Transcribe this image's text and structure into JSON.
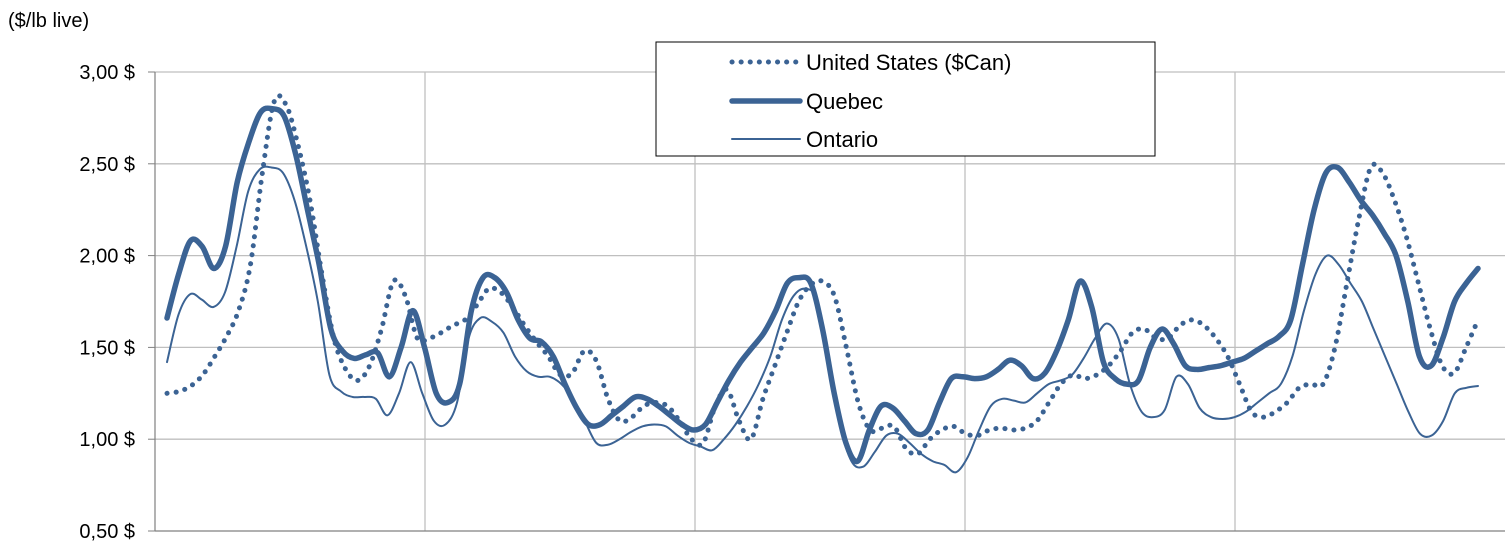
{
  "chart_data": {
    "type": "line",
    "ylabel": "($/lb live)",
    "ylim": [
      0.5,
      3.0
    ],
    "yticks": [
      3.0,
      2.5,
      2.0,
      1.5,
      1.0,
      0.5
    ],
    "ytick_labels": [
      "3,00  $",
      "2,50  $",
      "2,00  $",
      "1,50  $",
      "1,00  $",
      "0,50  $"
    ],
    "x_period_count": 5,
    "grid": "on",
    "legend_position": "top-center",
    "colors": {
      "line": "#3b6394",
      "grid": "#bfbfbf",
      "axis": "#808080"
    },
    "series": [
      {
        "name": "United States ($Can)",
        "style": "dotted",
        "values": [
          1.25,
          1.26,
          1.29,
          1.35,
          1.45,
          1.56,
          1.7,
          1.95,
          2.45,
          2.84,
          2.82,
          2.6,
          2.3,
          1.9,
          1.55,
          1.38,
          1.32,
          1.4,
          1.6,
          1.86,
          1.78,
          1.55,
          1.55,
          1.58,
          1.62,
          1.65,
          1.73,
          1.82,
          1.8,
          1.72,
          1.62,
          1.53,
          1.45,
          1.35,
          1.36,
          1.48,
          1.43,
          1.22,
          1.1,
          1.12,
          1.18,
          1.2,
          1.18,
          1.1,
          1.0,
          0.98,
          1.18,
          1.27,
          1.1,
          1.0,
          1.22,
          1.4,
          1.58,
          1.75,
          1.84,
          1.86,
          1.78,
          1.5,
          1.2,
          1.05,
          1.06,
          1.07,
          0.95,
          0.92,
          1.0,
          1.05,
          1.07,
          1.03,
          1.02,
          1.05,
          1.06,
          1.05,
          1.06,
          1.1,
          1.2,
          1.3,
          1.35,
          1.33,
          1.35,
          1.4,
          1.48,
          1.58,
          1.6,
          1.55,
          1.55,
          1.62,
          1.65,
          1.62,
          1.55,
          1.45,
          1.3,
          1.15,
          1.12,
          1.15,
          1.2,
          1.28,
          1.3,
          1.3,
          1.5,
          1.85,
          2.2,
          2.48,
          2.45,
          2.3,
          2.1,
          1.85,
          1.6,
          1.4,
          1.36,
          1.5,
          1.65
        ]
      },
      {
        "name": "Quebec",
        "style": "thick",
        "values": [
          1.66,
          1.9,
          2.08,
          2.05,
          1.93,
          2.05,
          2.4,
          2.62,
          2.78,
          2.8,
          2.76,
          2.55,
          2.25,
          1.95,
          1.6,
          1.48,
          1.44,
          1.46,
          1.47,
          1.34,
          1.5,
          1.7,
          1.5,
          1.25,
          1.2,
          1.3,
          1.7,
          1.88,
          1.88,
          1.8,
          1.65,
          1.55,
          1.53,
          1.45,
          1.3,
          1.17,
          1.08,
          1.08,
          1.13,
          1.18,
          1.23,
          1.22,
          1.18,
          1.13,
          1.08,
          1.05,
          1.08,
          1.2,
          1.32,
          1.42,
          1.5,
          1.58,
          1.7,
          1.85,
          1.88,
          1.85,
          1.6,
          1.25,
          0.98,
          0.88,
          1.05,
          1.18,
          1.17,
          1.1,
          1.03,
          1.05,
          1.2,
          1.33,
          1.34,
          1.33,
          1.34,
          1.38,
          1.43,
          1.4,
          1.33,
          1.36,
          1.48,
          1.65,
          1.86,
          1.72,
          1.42,
          1.33,
          1.3,
          1.32,
          1.5,
          1.6,
          1.52,
          1.4,
          1.38,
          1.39,
          1.4,
          1.42,
          1.44,
          1.48,
          1.52,
          1.56,
          1.65,
          1.95,
          2.25,
          2.45,
          2.48,
          2.4,
          2.3,
          2.22,
          2.12,
          2.0,
          1.75,
          1.45,
          1.4,
          1.55,
          1.75,
          1.85,
          1.93
        ]
      },
      {
        "name": "Ontario",
        "style": "thin",
        "values": [
          1.42,
          1.68,
          1.79,
          1.76,
          1.72,
          1.8,
          2.05,
          2.35,
          2.47,
          2.48,
          2.45,
          2.3,
          2.05,
          1.75,
          1.35,
          1.26,
          1.23,
          1.23,
          1.22,
          1.13,
          1.25,
          1.42,
          1.25,
          1.1,
          1.08,
          1.2,
          1.55,
          1.66,
          1.64,
          1.58,
          1.45,
          1.37,
          1.34,
          1.34,
          1.3,
          1.22,
          1.1,
          0.98,
          0.97,
          1.0,
          1.04,
          1.07,
          1.08,
          1.07,
          1.02,
          0.98,
          0.96,
          0.94,
          1.0,
          1.08,
          1.18,
          1.3,
          1.45,
          1.65,
          1.78,
          1.82,
          1.76,
          1.45,
          1.08,
          0.88,
          0.85,
          0.93,
          1.02,
          1.03,
          0.98,
          0.92,
          0.88,
          0.86,
          0.82,
          0.9,
          1.05,
          1.18,
          1.22,
          1.21,
          1.2,
          1.25,
          1.3,
          1.32,
          1.35,
          1.44,
          1.55,
          1.63,
          1.55,
          1.3,
          1.15,
          1.12,
          1.16,
          1.34,
          1.3,
          1.17,
          1.12,
          1.11,
          1.12,
          1.15,
          1.2,
          1.25,
          1.3,
          1.45,
          1.7,
          1.9,
          2.0,
          1.95,
          1.85,
          1.75,
          1.6,
          1.45,
          1.3,
          1.15,
          1.03,
          1.02,
          1.1,
          1.25,
          1.28,
          1.29
        ]
      }
    ]
  }
}
